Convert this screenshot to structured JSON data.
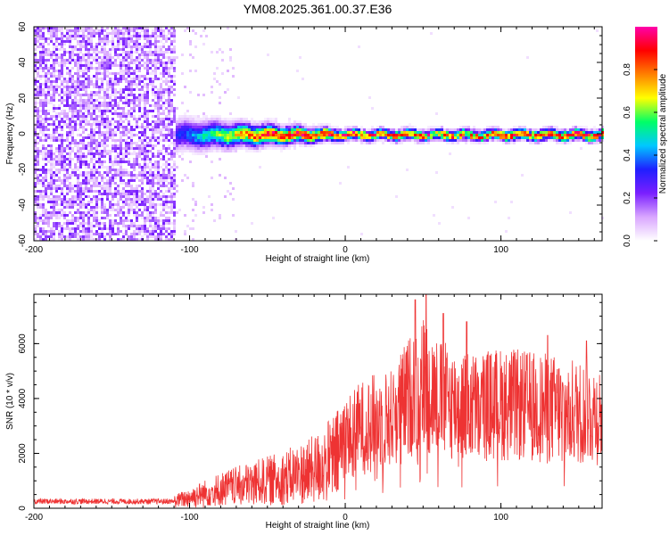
{
  "chart_data": [
    {
      "type": "heatmap",
      "title": "YM08.2025.361.00.37.E36",
      "xlabel": "Height of straight line (km)",
      "ylabel": "Frequency (Hz)",
      "xlim": [
        -200,
        165
      ],
      "ylim": [
        -60,
        60
      ],
      "xticks": [
        -200,
        -100,
        0,
        100
      ],
      "yticks": [
        -60,
        -40,
        -20,
        0,
        20,
        40,
        60
      ],
      "colorbar": {
        "label": "Normalized spectral amplitude",
        "range": [
          0,
          1
        ],
        "ticks": [
          0.0,
          0.2,
          0.4,
          0.6,
          0.8
        ],
        "colors": [
          "#ffffff",
          "#d9a6ff",
          "#7a1fff",
          "#1f1fff",
          "#00c8ff",
          "#00ff66",
          "#ffff00",
          "#ff8000",
          "#ff0000",
          "#ff00aa"
        ]
      },
      "noise_region_x": [
        -200,
        -110
      ],
      "sparse_region_x": [
        -110,
        -70
      ],
      "signal_band": {
        "x_start": -110,
        "x_end": 165,
        "center_freq": 0,
        "halfwidth_start": 7,
        "halfwidth_end": 2.5,
        "peak_amplitude": 0.95
      }
    },
    {
      "type": "line",
      "xlabel": "Height of straight line (km)",
      "ylabel": "SNR (10 * v/v)",
      "xlim": [
        -200,
        165
      ],
      "ylim": [
        0,
        7800
      ],
      "xticks": [
        -200,
        -100,
        0,
        100
      ],
      "yticks": [
        0,
        2000,
        4000,
        6000
      ],
      "series": [
        {
          "name": "SNR",
          "color": "#ee3333",
          "envelope": {
            "x": [
              -200,
              -110,
              -100,
              -80,
              -60,
              -40,
              -20,
              -5,
              0,
              10,
              20,
              30,
              40,
              50,
              60,
              70,
              80,
              100,
              120,
              140,
              165
            ],
            "y": [
              250,
              250,
              400,
              700,
              900,
              1100,
              1400,
              1900,
              2600,
              3000,
              3200,
              3300,
              4000,
              4600,
              4000,
              3800,
              3700,
              3800,
              3700,
              3600,
              3400
            ]
          },
          "peaks": [
            {
              "x": 45,
              "y": 7600
            },
            {
              "x": 52,
              "y": 7800
            },
            {
              "x": 63,
              "y": 7100
            },
            {
              "x": 78,
              "y": 6800
            },
            {
              "x": 130,
              "y": 6300
            },
            {
              "x": 155,
              "y": 6100
            }
          ]
        }
      ]
    }
  ]
}
